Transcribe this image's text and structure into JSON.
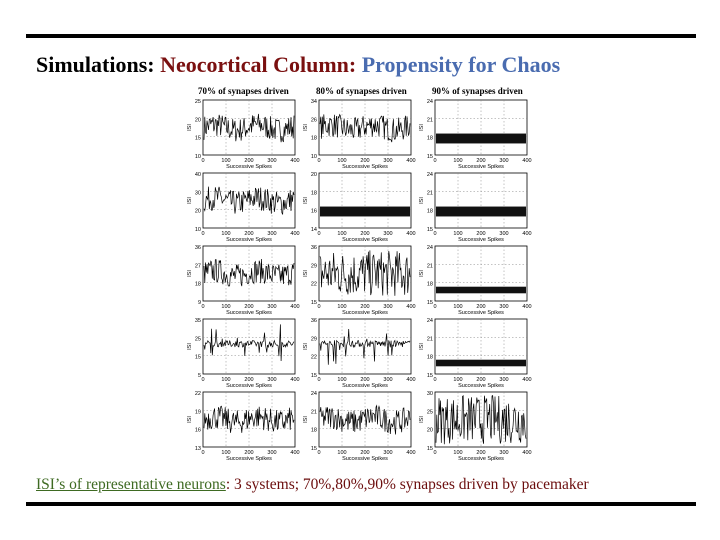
{
  "slide": {
    "title_part1": "Simulations:",
    "title_part2": "Neocortical Column:",
    "title_part3": "Propensity for Chaos",
    "caption_lead": "ISI’s of representative neurons",
    "caption_rest": ": 3 systems; 70%,80%,90% synapses driven by pacemaker",
    "colors": {
      "title_dark": "#000000",
      "title_red": "#7a1010",
      "title_blue": "#4a6cb0",
      "caption_green": "#3e6a22",
      "caption_red": "#6b0d0d"
    }
  },
  "figure": {
    "column_titles": [
      "70% of synapses driven",
      "80% of synapses driven",
      "90% of synapses driven"
    ],
    "xlabel": "Successive Spikes",
    "ylabel": "ISI",
    "x_ticks": [
      "0",
      "100",
      "200",
      "300",
      "400"
    ],
    "rows": [
      [
        {
          "y_ticks": [
            "25",
            "20",
            "15",
            "10"
          ],
          "mode": "noisy"
        },
        {
          "y_ticks": [
            "34",
            "26",
            "18",
            "10"
          ],
          "mode": "noisy"
        },
        {
          "y_ticks": [
            "24",
            "21",
            "18",
            "15"
          ],
          "mode": "band"
        }
      ],
      [
        {
          "y_ticks": [
            "40",
            "30",
            "20",
            "10"
          ],
          "mode": "noisy"
        },
        {
          "y_ticks": [
            "20",
            "18",
            "16",
            "14"
          ],
          "mode": "band"
        },
        {
          "y_ticks": [
            "24",
            "21",
            "18",
            "15"
          ],
          "mode": "band"
        }
      ],
      [
        {
          "y_ticks": [
            "36",
            "27",
            "18",
            "9"
          ],
          "mode": "noisy"
        },
        {
          "y_ticks": [
            "36",
            "29",
            "22",
            "15"
          ],
          "mode": "chaos"
        },
        {
          "y_ticks": [
            "24",
            "21",
            "18",
            "15"
          ],
          "mode": "lowband"
        }
      ],
      [
        {
          "y_ticks": [
            "35",
            "25",
            "15",
            "5"
          ],
          "mode": "spiky"
        },
        {
          "y_ticks": [
            "36",
            "29",
            "22",
            "15"
          ],
          "mode": "spiky"
        },
        {
          "y_ticks": [
            "24",
            "21",
            "18",
            "15"
          ],
          "mode": "lowband"
        }
      ],
      [
        {
          "y_ticks": [
            "22",
            "19",
            "16",
            "13"
          ],
          "mode": "noisy"
        },
        {
          "y_ticks": [
            "24",
            "21",
            "18",
            "15"
          ],
          "mode": "noisy"
        },
        {
          "y_ticks": [
            "30",
            "25",
            "20",
            "15"
          ],
          "mode": "dense"
        }
      ]
    ]
  }
}
